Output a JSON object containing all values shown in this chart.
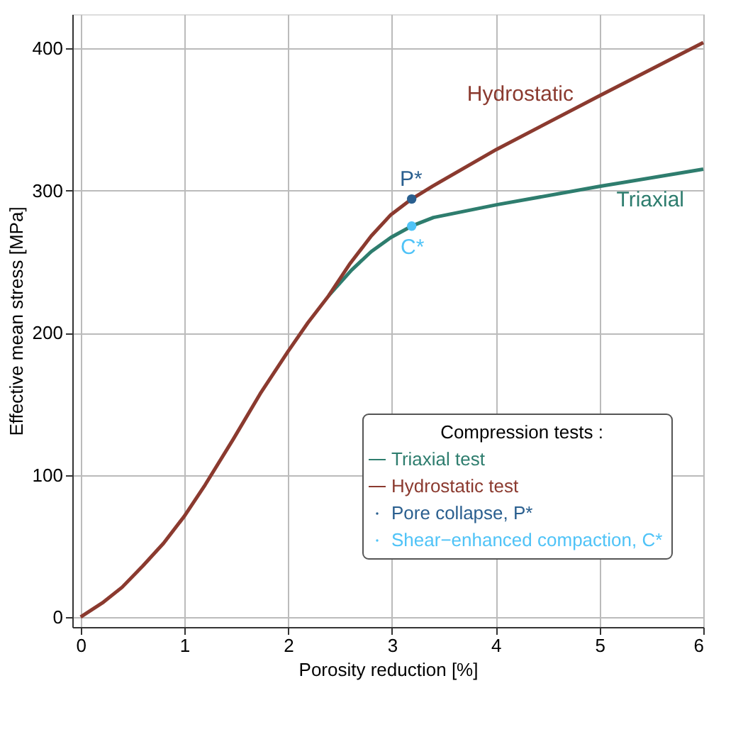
{
  "chart_data": {
    "type": "line",
    "xlabel": "Porosity reduction [%]",
    "ylabel": "Effective mean stress [MPa]",
    "legend_title": "Compression tests :",
    "xlim": [
      -0.08,
      6.0
    ],
    "ylim": [
      -7,
      424
    ],
    "xticks": [
      0,
      1,
      2,
      3,
      4,
      5,
      6
    ],
    "yticks": [
      0,
      100,
      200,
      300,
      400
    ],
    "grid": true,
    "legend": "bottom right",
    "series": [
      {
        "name": "Triaxial test",
        "color": "#2e7d6e",
        "x": [
          2.39,
          2.61,
          2.8,
          2.99,
          3.19,
          3.4,
          4.01,
          5.01,
          6.0
        ],
        "values": [
          226,
          244,
          257,
          267,
          275,
          281,
          290,
          303,
          315
        ]
      },
      {
        "name": "Hydrostatic test",
        "color": "#8b3a2f",
        "x": [
          0,
          0.21,
          0.4,
          0.6,
          0.8,
          1.0,
          1.2,
          1.47,
          1.73,
          2.0,
          2.19,
          2.39,
          2.59,
          2.8,
          2.99,
          3.19,
          3.39,
          4.01,
          5.01,
          6.0
        ],
        "values": [
          0,
          10,
          21,
          36,
          52,
          71,
          93,
          125,
          157,
          187,
          207,
          226,
          248,
          268,
          283,
          294,
          303,
          329,
          367,
          404
        ]
      },
      {
        "name": "Pore collapse, P*",
        "color": "#2a5f8f",
        "type": "scatter",
        "marker": "circle",
        "x": [
          3.19
        ],
        "values": [
          294
        ]
      },
      {
        "name": "Shear−enhanced compaction, C*",
        "color": "#4fc3f7",
        "type": "scatter",
        "marker": "circle",
        "x": [
          3.19
        ],
        "values": [
          275
        ]
      }
    ],
    "annotations": [
      "Hydrostatic",
      "Triaxial",
      "P*",
      "C*"
    ]
  }
}
